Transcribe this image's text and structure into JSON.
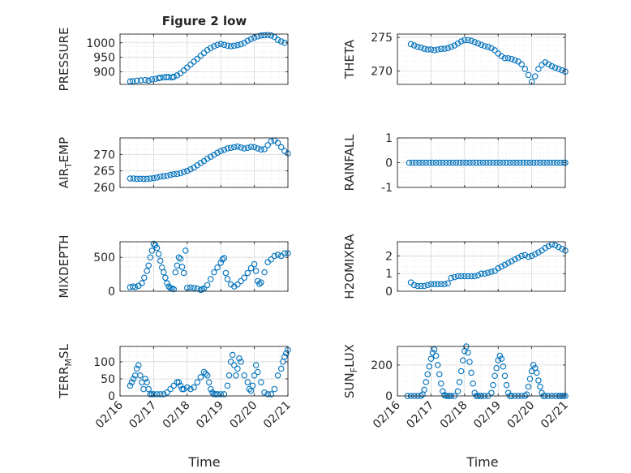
{
  "figure": {
    "title": "Figure 2 low",
    "xlabel": "Time",
    "time_ticks": [
      "02/16",
      "02/17",
      "02/18",
      "02/19",
      "02/20",
      "02/21"
    ],
    "marker_color": "#0072BD",
    "grid_color": "#d9d9d9"
  },
  "chart_data": [
    {
      "type": "scatter",
      "name": "PRESSURE",
      "ylabel": "PRESSURE",
      "ylim": [
        857,
        1030
      ],
      "yticks": [
        900,
        950,
        1000
      ],
      "x": [
        0.3,
        0.38,
        0.5,
        0.62,
        0.75,
        0.85,
        0.95,
        1.05,
        1.15,
        1.2,
        1.3,
        1.38,
        1.45,
        1.55,
        1.6,
        1.7,
        1.8,
        1.9,
        2.0,
        2.1,
        2.2,
        2.3,
        2.4,
        2.5,
        2.6,
        2.7,
        2.8,
        2.9,
        3.0,
        3.1,
        3.2,
        3.3,
        3.4,
        3.5,
        3.6,
        3.7,
        3.8,
        3.9,
        4.0,
        4.1,
        4.2,
        4.3,
        4.4,
        4.5,
        4.6,
        4.7,
        4.8,
        4.9
      ],
      "y": [
        867,
        868,
        870,
        871,
        872,
        870,
        874,
        876,
        878,
        880,
        881,
        882,
        882,
        881,
        883,
        888,
        895,
        905,
        915,
        925,
        935,
        945,
        955,
        965,
        975,
        982,
        988,
        993,
        996,
        993,
        990,
        988,
        990,
        992,
        995,
        1000,
        1007,
        1013,
        1018,
        1022,
        1025,
        1026,
        1027,
        1025,
        1020,
        1010,
        1005,
        1000
      ]
    },
    {
      "type": "scatter",
      "name": "THETA",
      "ylabel": "THETA",
      "ylim": [
        268,
        275.5
      ],
      "yticks": [
        270,
        275
      ],
      "x": [
        0.4,
        0.5,
        0.6,
        0.7,
        0.8,
        0.9,
        1.0,
        1.1,
        1.2,
        1.3,
        1.4,
        1.5,
        1.6,
        1.7,
        1.8,
        1.9,
        2.0,
        2.1,
        2.2,
        2.3,
        2.4,
        2.5,
        2.6,
        2.7,
        2.8,
        2.9,
        3.0,
        3.1,
        3.2,
        3.3,
        3.4,
        3.5,
        3.6,
        3.7,
        3.8,
        3.9,
        4.0,
        4.1,
        4.2,
        4.3,
        4.4,
        4.5,
        4.6,
        4.7,
        4.8,
        4.9,
        5.0
      ],
      "y": [
        274,
        273.8,
        273.6,
        273.5,
        273.3,
        273.2,
        273.2,
        273.1,
        273.2,
        273.3,
        273.3,
        273.4,
        273.6,
        273.8,
        274.1,
        274.4,
        274.6,
        274.6,
        274.5,
        274.3,
        274.1,
        273.9,
        273.7,
        273.6,
        273.4,
        273.1,
        272.6,
        272.2,
        271.9,
        271.9,
        271.8,
        271.6,
        271.4,
        271.0,
        270.3,
        269.4,
        268.4,
        269.2,
        270.3,
        270.9,
        271.3,
        271.0,
        270.7,
        270.5,
        270.3,
        270.1,
        269.9
      ]
    },
    {
      "type": "scatter",
      "name": "AIR_TEMP",
      "ylabel": "AIR_TEMP",
      "ylim": [
        260,
        275
      ],
      "yticks": [
        260,
        265,
        270
      ],
      "x": [
        0.3,
        0.4,
        0.5,
        0.6,
        0.7,
        0.8,
        0.9,
        1.0,
        1.1,
        1.2,
        1.3,
        1.4,
        1.5,
        1.6,
        1.7,
        1.8,
        1.9,
        2.0,
        2.1,
        2.2,
        2.3,
        2.4,
        2.5,
        2.6,
        2.7,
        2.8,
        2.9,
        3.0,
        3.1,
        3.2,
        3.3,
        3.4,
        3.5,
        3.6,
        3.7,
        3.8,
        3.9,
        4.0,
        4.1,
        4.2,
        4.3,
        4.4,
        4.5,
        4.6,
        4.7,
        4.8,
        4.9,
        5.0
      ],
      "y": [
        262.7,
        262.7,
        262.6,
        262.6,
        262.6,
        262.6,
        262.7,
        262.8,
        263.0,
        263.3,
        263.4,
        263.5,
        263.8,
        264.0,
        264.1,
        264.3,
        264.7,
        265.0,
        265.5,
        266.0,
        266.7,
        267.4,
        268.0,
        268.7,
        269.3,
        269.9,
        270.5,
        271.0,
        271.4,
        271.8,
        272.0,
        272.2,
        272.4,
        272.1,
        271.8,
        272.0,
        272.3,
        272.2,
        271.8,
        271.5,
        271.6,
        272.8,
        274.0,
        274.2,
        273.5,
        272.2,
        271.0,
        270.3
      ]
    },
    {
      "type": "scatter",
      "name": "RAINFALL",
      "ylabel": "RAINFALL",
      "ylim": [
        -1,
        1
      ],
      "yticks": [
        -1,
        0,
        1
      ],
      "x": [
        0.35,
        0.45,
        0.55,
        0.65,
        0.75,
        0.85,
        0.95,
        1.05,
        1.15,
        1.25,
        1.35,
        1.45,
        1.55,
        1.65,
        1.75,
        1.85,
        1.95,
        2.05,
        2.15,
        2.25,
        2.35,
        2.45,
        2.55,
        2.65,
        2.75,
        2.85,
        2.95,
        3.05,
        3.15,
        3.25,
        3.35,
        3.45,
        3.55,
        3.65,
        3.75,
        3.85,
        3.95,
        4.05,
        4.15,
        4.25,
        4.35,
        4.45,
        4.55,
        4.65,
        4.75,
        4.85,
        4.95,
        5.0
      ],
      "y": [
        0,
        0,
        0,
        0,
        0,
        0,
        0,
        0,
        0,
        0,
        0,
        0,
        0,
        0,
        0,
        0,
        0,
        0,
        0,
        0,
        0,
        0,
        0,
        0,
        0,
        0,
        0,
        0,
        0,
        0,
        0,
        0,
        0,
        0,
        0,
        0,
        0,
        0,
        0,
        0,
        0,
        0,
        0,
        0,
        0,
        0,
        0,
        0
      ]
    },
    {
      "type": "scatter",
      "name": "MIXDEPTH",
      "ylabel": "MIXDEPTH",
      "ylim": [
        0,
        730
      ],
      "yticks": [
        0,
        500
      ],
      "x": [
        0.3,
        0.38,
        0.45,
        0.55,
        0.65,
        0.72,
        0.8,
        0.85,
        0.9,
        0.95,
        1.0,
        1.05,
        1.1,
        1.15,
        1.2,
        1.25,
        1.3,
        1.35,
        1.4,
        1.45,
        1.5,
        1.55,
        1.6,
        1.65,
        1.7,
        1.75,
        1.8,
        1.85,
        1.9,
        1.95,
        2.0,
        2.1,
        2.2,
        2.3,
        2.4,
        2.45,
        2.5,
        2.6,
        2.7,
        2.8,
        2.9,
        3.0,
        3.05,
        3.1,
        3.15,
        3.2,
        3.3,
        3.4,
        3.5,
        3.6,
        3.7,
        3.8,
        3.9,
        4.0,
        4.05,
        4.1,
        4.15,
        4.2,
        4.3,
        4.4,
        4.5,
        4.6,
        4.7,
        4.8,
        4.9,
        5.0
      ],
      "y": [
        60,
        70,
        60,
        80,
        120,
        200,
        300,
        380,
        500,
        600,
        700,
        680,
        640,
        550,
        450,
        350,
        280,
        200,
        120,
        70,
        50,
        40,
        30,
        280,
        380,
        500,
        480,
        360,
        270,
        600,
        50,
        55,
        50,
        40,
        20,
        30,
        40,
        90,
        180,
        280,
        350,
        420,
        470,
        490,
        270,
        180,
        100,
        70,
        100,
        150,
        200,
        270,
        340,
        400,
        300,
        150,
        110,
        130,
        280,
        430,
        470,
        520,
        540,
        520,
        560,
        560
      ]
    },
    {
      "type": "scatter",
      "name": "H2OMIXRA",
      "ylabel": "H2OMIXRA",
      "ylim": [
        0,
        2.8
      ],
      "yticks": [
        0,
        1,
        2
      ],
      "x": [
        0.4,
        0.5,
        0.6,
        0.7,
        0.8,
        0.9,
        1.0,
        1.1,
        1.2,
        1.3,
        1.4,
        1.5,
        1.6,
        1.7,
        1.8,
        1.9,
        2.0,
        2.1,
        2.2,
        2.3,
        2.4,
        2.5,
        2.6,
        2.7,
        2.8,
        2.9,
        3.0,
        3.1,
        3.2,
        3.3,
        3.4,
        3.5,
        3.6,
        3.7,
        3.8,
        3.9,
        4.0,
        4.1,
        4.2,
        4.3,
        4.4,
        4.5,
        4.6,
        4.7,
        4.8,
        4.9,
        5.0
      ],
      "y": [
        0.5,
        0.35,
        0.3,
        0.3,
        0.3,
        0.35,
        0.4,
        0.4,
        0.4,
        0.4,
        0.4,
        0.45,
        0.75,
        0.8,
        0.85,
        0.85,
        0.85,
        0.85,
        0.85,
        0.85,
        0.9,
        1.0,
        1.0,
        1.05,
        1.1,
        1.15,
        1.3,
        1.4,
        1.5,
        1.6,
        1.7,
        1.8,
        1.9,
        2.0,
        2.05,
        1.95,
        2.0,
        2.1,
        2.2,
        2.3,
        2.45,
        2.55,
        2.65,
        2.6,
        2.5,
        2.4,
        2.3
      ]
    },
    {
      "type": "scatter",
      "name": "TERR_MSL",
      "ylabel": "TERR_MSL",
      "ylim": [
        0,
        145
      ],
      "yticks": [
        0,
        50,
        100
      ],
      "x": [
        0.3,
        0.35,
        0.4,
        0.45,
        0.5,
        0.55,
        0.6,
        0.65,
        0.7,
        0.75,
        0.8,
        0.85,
        0.9,
        0.95,
        1.0,
        1.1,
        1.2,
        1.3,
        1.4,
        1.5,
        1.6,
        1.7,
        1.75,
        1.8,
        1.85,
        1.9,
        2.0,
        2.1,
        2.2,
        2.3,
        2.4,
        2.5,
        2.55,
        2.6,
        2.65,
        2.7,
        2.75,
        2.8,
        2.85,
        2.9,
        3.0,
        3.1,
        3.2,
        3.25,
        3.3,
        3.35,
        3.4,
        3.45,
        3.5,
        3.55,
        3.6,
        3.7,
        3.8,
        3.85,
        3.9,
        3.95,
        4.0,
        4.05,
        4.1,
        4.2,
        4.3,
        4.4,
        4.5,
        4.6,
        4.7,
        4.8,
        4.85,
        4.9,
        4.95,
        5.0
      ],
      "y": [
        30,
        40,
        50,
        60,
        80,
        90,
        60,
        40,
        20,
        50,
        40,
        20,
        5,
        5,
        5,
        5,
        5,
        5,
        10,
        20,
        30,
        40,
        40,
        30,
        20,
        20,
        25,
        20,
        25,
        40,
        55,
        70,
        65,
        60,
        40,
        20,
        10,
        5,
        5,
        5,
        5,
        5,
        30,
        60,
        100,
        120,
        90,
        60,
        80,
        110,
        100,
        60,
        40,
        20,
        15,
        30,
        60,
        90,
        70,
        40,
        10,
        5,
        5,
        20,
        60,
        80,
        100,
        115,
        125,
        135
      ]
    },
    {
      "type": "scatter",
      "name": "SUN_FLUX",
      "ylabel": "SUN_FLUX",
      "ylim": [
        0,
        320
      ],
      "yticks": [
        0,
        200
      ],
      "x": [
        0.3,
        0.4,
        0.5,
        0.6,
        0.7,
        0.75,
        0.8,
        0.85,
        0.9,
        0.95,
        1.0,
        1.05,
        1.1,
        1.15,
        1.2,
        1.25,
        1.3,
        1.35,
        1.4,
        1.45,
        1.5,
        1.55,
        1.6,
        1.7,
        1.8,
        1.85,
        1.9,
        1.95,
        2.0,
        2.05,
        2.1,
        2.15,
        2.2,
        2.25,
        2.3,
        2.35,
        2.4,
        2.45,
        2.5,
        2.6,
        2.7,
        2.8,
        2.85,
        2.9,
        2.95,
        3.0,
        3.05,
        3.1,
        3.15,
        3.2,
        3.25,
        3.3,
        3.35,
        3.4,
        3.5,
        3.6,
        3.7,
        3.8,
        3.85,
        3.9,
        3.95,
        4.0,
        4.05,
        4.1,
        4.15,
        4.2,
        4.25,
        4.3,
        4.35,
        4.4,
        4.5,
        4.6,
        4.7,
        4.8,
        4.85,
        4.9,
        4.95,
        5.0
      ],
      "y": [
        0,
        0,
        0,
        0,
        0,
        10,
        40,
        90,
        140,
        190,
        240,
        280,
        300,
        260,
        200,
        140,
        80,
        30,
        5,
        0,
        0,
        0,
        0,
        0,
        30,
        90,
        160,
        230,
        290,
        320,
        280,
        220,
        150,
        80,
        20,
        0,
        0,
        0,
        0,
        0,
        0,
        20,
        70,
        130,
        180,
        230,
        260,
        240,
        190,
        130,
        70,
        20,
        0,
        0,
        0,
        0,
        0,
        0,
        10,
        60,
        110,
        160,
        200,
        180,
        150,
        100,
        60,
        20,
        0,
        0,
        0,
        0,
        0,
        0,
        0,
        0,
        0,
        0
      ]
    }
  ]
}
